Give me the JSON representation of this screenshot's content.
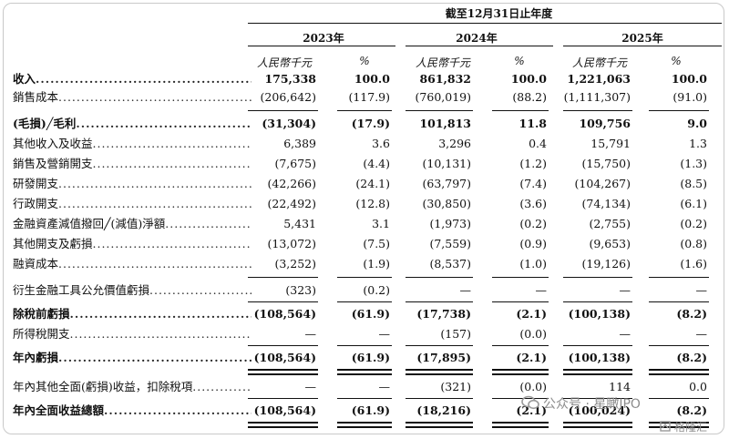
{
  "header": {
    "period": "截至12月31日止年度",
    "years": [
      "2023年",
      "2024年",
      "2025年"
    ],
    "unit_currency": "人民幣千元",
    "unit_pct": "%"
  },
  "rows": [
    {
      "label": "收入",
      "bold": true,
      "v": [
        "175,338",
        "100.0",
        "861,832",
        "100.0",
        "1,221,063",
        "100.0"
      ]
    },
    {
      "label": "銷售成本",
      "bold": false,
      "v": [
        "(206,642)",
        "(117.9)",
        "(760,019)",
        "(88.2)",
        "(1,111,307)",
        "(91.0)"
      ]
    },
    {
      "label": "(毛損)╱毛利",
      "bold": true,
      "v": [
        "(31,304)",
        "(17.9)",
        "101,813",
        "11.8",
        "109,756",
        "9.0"
      ]
    },
    {
      "label": "其他收入及收益",
      "bold": false,
      "v": [
        "6,389",
        "3.6",
        "3,296",
        "0.4",
        "15,791",
        "1.3"
      ]
    },
    {
      "label": "銷售及營銷開支",
      "bold": false,
      "v": [
        "(7,675)",
        "(4.4)",
        "(10,131)",
        "(1.2)",
        "(15,750)",
        "(1.3)"
      ]
    },
    {
      "label": "研發開支",
      "bold": false,
      "v": [
        "(42,266)",
        "(24.1)",
        "(63,797)",
        "(7.4)",
        "(104,267)",
        "(8.5)"
      ]
    },
    {
      "label": "行政開支",
      "bold": false,
      "v": [
        "(22,492)",
        "(12.8)",
        "(30,850)",
        "(3.6)",
        "(74,134)",
        "(6.1)"
      ]
    },
    {
      "label": "金融資產減值撥回╱(減值)淨額",
      "bold": false,
      "v": [
        "5,431",
        "3.1",
        "(1,973)",
        "(0.2)",
        "(2,755)",
        "(0.2)"
      ]
    },
    {
      "label": "其他開支及虧損",
      "bold": false,
      "v": [
        "(13,072)",
        "(7.5)",
        "(7,559)",
        "(0.9)",
        "(9,653)",
        "(0.8)"
      ]
    },
    {
      "label": "融資成本",
      "bold": false,
      "v": [
        "(3,252)",
        "(1.9)",
        "(8,537)",
        "(1.0)",
        "(19,126)",
        "(1.6)"
      ]
    },
    {
      "label": "衍生金融工具公允價值虧損",
      "bold": false,
      "v": [
        "(323)",
        "(0.2)",
        "—",
        "—",
        "—",
        "—"
      ]
    },
    {
      "label": "除稅前虧損",
      "bold": true,
      "v": [
        "(108,564)",
        "(61.9)",
        "(17,738)",
        "(2.1)",
        "(100,138)",
        "(8.2)"
      ]
    },
    {
      "label": "所得稅開支",
      "bold": false,
      "v": [
        "—",
        "—",
        "(157)",
        "(0.0)",
        "—",
        "—"
      ]
    },
    {
      "label": "年內虧損",
      "bold": true,
      "v": [
        "(108,564)",
        "(61.9)",
        "(17,895)",
        "(2.1)",
        "(100,138)",
        "(8.2)"
      ]
    },
    {
      "label": "年內其他全面(虧損)收益，扣除稅項",
      "bold": false,
      "v": [
        "—",
        "—",
        "(321)",
        "(0.0)",
        "114",
        "0.0"
      ]
    },
    {
      "label": "年內全面收益總額",
      "bold": true,
      "v": [
        "(108,564)",
        "(61.9)",
        "(18,216)",
        "(2.1)",
        "(100,024)",
        "(8.2)"
      ]
    }
  ],
  "watermark": {
    "text1": "公众号 · 星瞰IPO",
    "text2": "格隆汇"
  }
}
